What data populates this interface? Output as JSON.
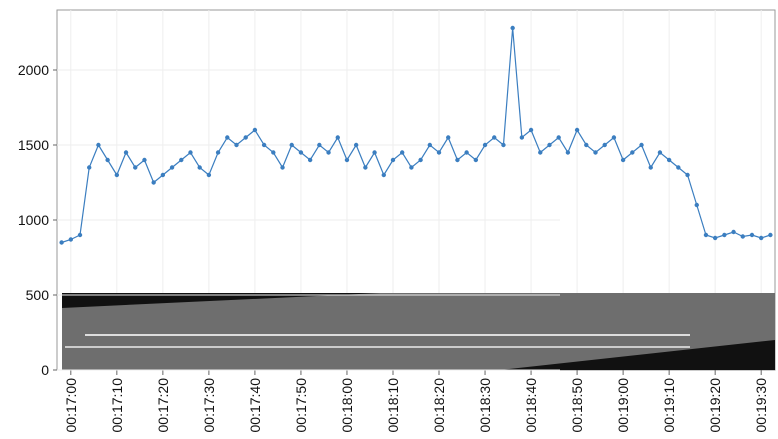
{
  "chart_data": {
    "type": "line",
    "color": "#3b7ec0",
    "grid": true,
    "x": [
      "00:16:58",
      "00:17:00",
      "00:17:02",
      "00:17:04",
      "00:17:06",
      "00:17:08",
      "00:17:10",
      "00:17:12",
      "00:17:14",
      "00:17:16",
      "00:17:18",
      "00:17:20",
      "00:17:22",
      "00:17:24",
      "00:17:26",
      "00:17:28",
      "00:17:30",
      "00:17:32",
      "00:17:34",
      "00:17:36",
      "00:17:38",
      "00:17:40",
      "00:17:42",
      "00:17:44",
      "00:17:46",
      "00:17:48",
      "00:17:50",
      "00:17:52",
      "00:17:54",
      "00:17:56",
      "00:17:58",
      "00:18:00",
      "00:18:02",
      "00:18:04",
      "00:18:06",
      "00:18:08",
      "00:18:10",
      "00:18:12",
      "00:18:14",
      "00:18:16",
      "00:18:18",
      "00:18:20",
      "00:18:22",
      "00:18:24",
      "00:18:26",
      "00:18:28",
      "00:18:30",
      "00:18:32",
      "00:18:34",
      "00:18:36",
      "00:18:38",
      "00:18:40",
      "00:18:42",
      "00:18:44",
      "00:18:46",
      "00:18:48",
      "00:18:50",
      "00:18:52",
      "00:18:54",
      "00:18:56",
      "00:18:58",
      "00:19:00",
      "00:19:02",
      "00:19:04",
      "00:19:06",
      "00:19:08",
      "00:19:10",
      "00:19:12",
      "00:19:14",
      "00:19:16",
      "00:19:18",
      "00:19:20",
      "00:19:22",
      "00:19:24",
      "00:19:26",
      "00:19:28",
      "00:19:30",
      "00:19:32"
    ],
    "values": [
      850,
      870,
      900,
      1350,
      1500,
      1400,
      1300,
      1450,
      1350,
      1400,
      1250,
      1300,
      1350,
      1400,
      1450,
      1350,
      1300,
      1450,
      1550,
      1500,
      1550,
      1600,
      1500,
      1450,
      1350,
      1500,
      1450,
      1400,
      1500,
      1450,
      1550,
      1400,
      1500,
      1350,
      1450,
      1300,
      1400,
      1450,
      1350,
      1400,
      1500,
      1450,
      1550,
      1400,
      1450,
      1400,
      1500,
      1550,
      1500,
      2280,
      1550,
      1600,
      1450,
      1500,
      1550,
      1450,
      1600,
      1500,
      1450,
      1500,
      1550,
      1400,
      1450,
      1500,
      1350,
      1450,
      1400,
      1350,
      1300,
      1100,
      900,
      880,
      900,
      920,
      890,
      900,
      880,
      900
    ],
    "xlim": [
      "00:16:57",
      "00:19:33"
    ],
    "xticks": [
      "00:17:00",
      "00:17:10",
      "00:17:20",
      "00:17:30",
      "00:17:40",
      "00:17:50",
      "00:18:00",
      "00:18:10",
      "00:18:20",
      "00:18:30",
      "00:18:40",
      "00:18:50",
      "00:19:00",
      "00:19:10",
      "00:19:20",
      "00:19:30"
    ],
    "ylim": [
      0,
      2400
    ],
    "yticks": [
      0,
      500,
      1000,
      1500,
      2000
    ]
  }
}
